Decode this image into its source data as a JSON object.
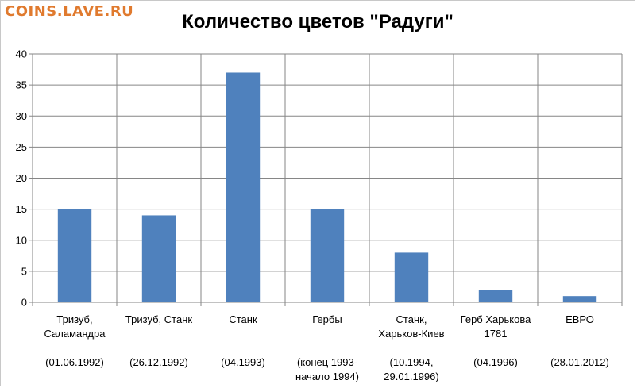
{
  "watermark": "COINS.LAVE.RU",
  "chart_data": {
    "type": "bar",
    "title": "Количество цветов \"Радуги\"",
    "xlabel": "",
    "ylabel": "",
    "ylim": [
      0,
      40
    ],
    "yticks": [
      0,
      5,
      10,
      15,
      20,
      25,
      30,
      35,
      40
    ],
    "grid": true,
    "legend": "none",
    "bar_color": "#4f81bd",
    "categories": [
      {
        "lines": [
          "Тризуб,",
          "Саламандра",
          "",
          "(01.06.1992)"
        ]
      },
      {
        "lines": [
          "Тризуб, Станк",
          "",
          "",
          "(26.12.1992)"
        ]
      },
      {
        "lines": [
          "Станк",
          "",
          "",
          "(04.1993)"
        ]
      },
      {
        "lines": [
          "Гербы",
          "",
          "",
          "(конец 1993-",
          "начало 1994)"
        ]
      },
      {
        "lines": [
          "Станк,",
          "Харьков-Киев",
          "",
          "(10.1994,",
          "29.01.1996)"
        ]
      },
      {
        "lines": [
          "Герб Харькова",
          "1781",
          "",
          "(04.1996)"
        ]
      },
      {
        "lines": [
          "ЕВРО",
          "",
          "",
          "(28.01.2012)"
        ]
      }
    ],
    "values": [
      15,
      14,
      37,
      15,
      8,
      2,
      1
    ]
  }
}
